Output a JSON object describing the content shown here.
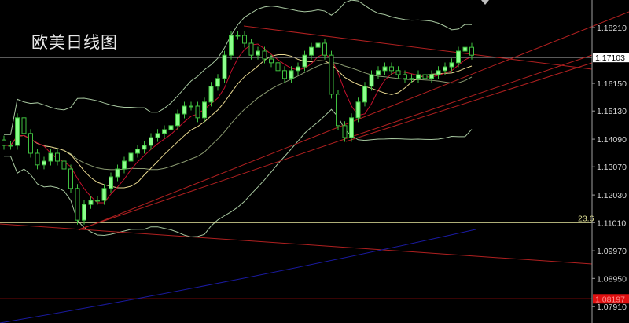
{
  "title": "欧美日线图",
  "colors": {
    "background": "#000000",
    "bull": "#8cff8c",
    "bear": "#3fbf3f",
    "axis": "#a0a0a0",
    "current_price": "#ffffff",
    "fib": "#e8e8a0",
    "red_level": "#e01010",
    "trendline": "#b02020",
    "ma_line": "#c8102e",
    "bb_line": "#a8c8a0",
    "long_ma": "#1a1aa0"
  },
  "chart_data": {
    "type": "candlestick",
    "symbol_title": "欧美日线图",
    "ylim": [
      1.077,
      1.189
    ],
    "y_ticks": [
      "1.18210",
      "1.16150",
      "1.15130",
      "1.14090",
      "1.13070",
      "1.12030",
      "1.11010",
      "1.09970",
      "1.08950",
      "1.07910"
    ],
    "current_price": "1.17103",
    "red_level_label": "1.08197",
    "fib_label": "23.6",
    "fib_level": 1.1101,
    "close": [
      1.1386,
      1.1386,
      1.1488,
      1.143,
      1.1357,
      1.1314,
      1.1328,
      1.1357,
      1.1328,
      1.1299,
      1.1227,
      1.111,
      1.1168,
      1.1183,
      1.1183,
      1.1227,
      1.127,
      1.1299,
      1.1328,
      1.1357,
      1.1372,
      1.1386,
      1.1415,
      1.143,
      1.1444,
      1.1459,
      1.1502,
      1.1531,
      1.1531,
      1.1488,
      1.1546,
      1.1604,
      1.1633,
      1.1719,
      1.1792,
      1.1792,
      1.1763,
      1.1719,
      1.1734,
      1.1705,
      1.1691,
      1.1662,
      1.1633,
      1.1662,
      1.1676,
      1.1719,
      1.1748,
      1.1763,
      1.1719,
      1.1575,
      1.1459,
      1.1415,
      1.1488,
      1.1546,
      1.1604,
      1.1647,
      1.1662,
      1.1676,
      1.1662,
      1.1647,
      1.1633,
      1.1633,
      1.1647,
      1.1633,
      1.1647,
      1.1662,
      1.1676,
      1.1691,
      1.1734,
      1.1748,
      1.1719
    ],
    "grid": false
  }
}
